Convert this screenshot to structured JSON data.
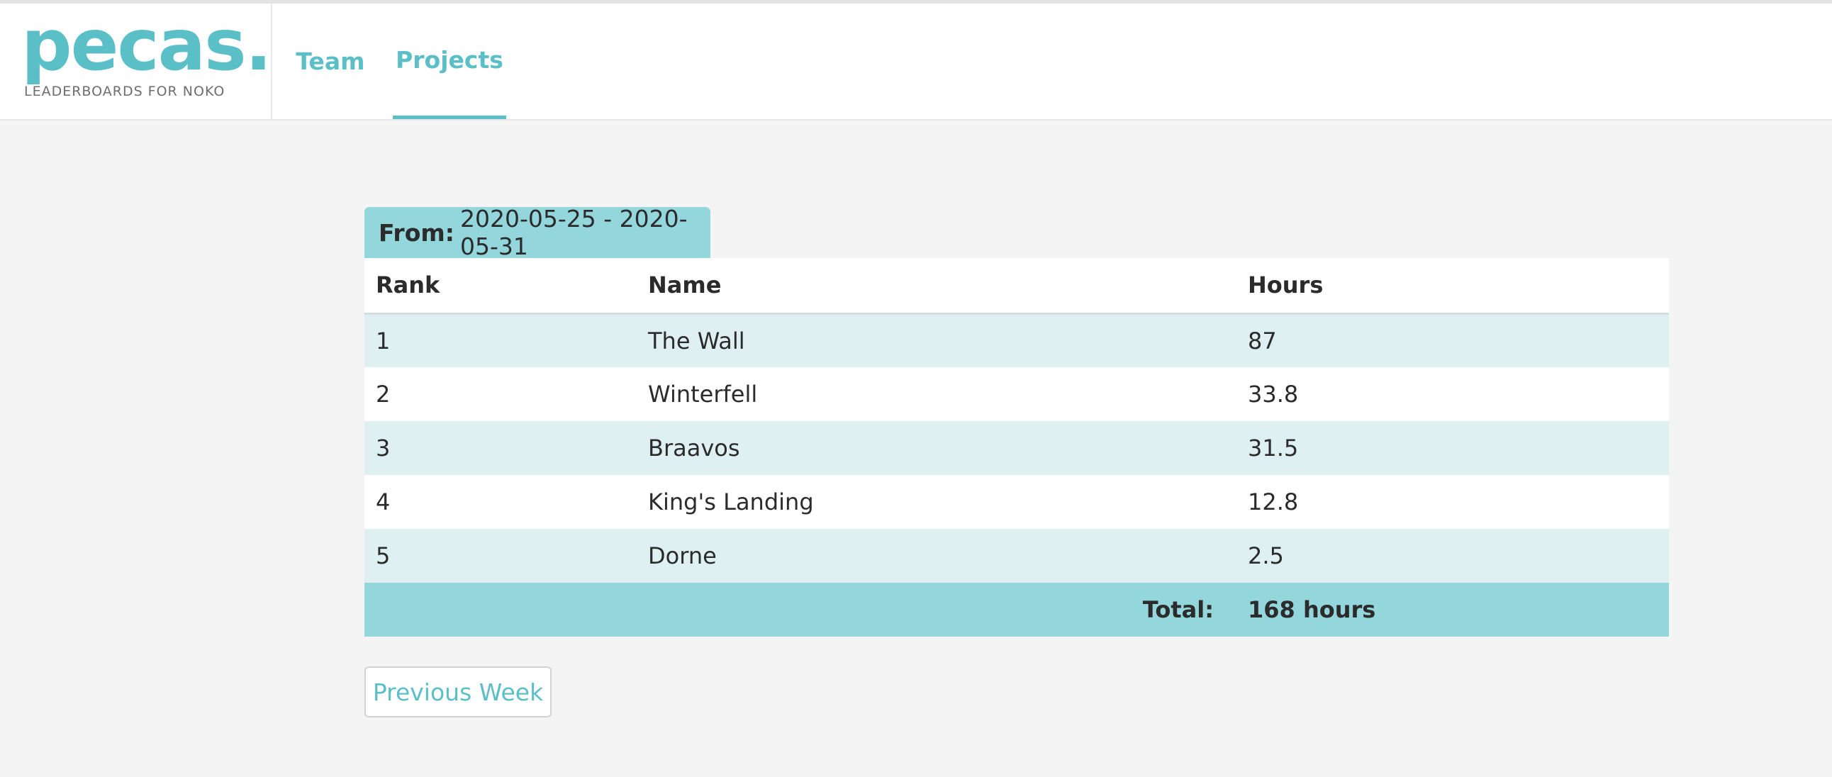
{
  "brand": {
    "logo_text": "pecas.",
    "tagline": "LEADERBOARDS FOR NOKO"
  },
  "nav": {
    "tabs": [
      {
        "label": "Team",
        "active": false
      },
      {
        "label": "Projects",
        "active": true
      }
    ]
  },
  "period": {
    "label": "From:",
    "range": "2020-05-25 - 2020-05-31"
  },
  "table": {
    "headers": {
      "rank": "Rank",
      "name": "Name",
      "hours": "Hours"
    },
    "rows": [
      {
        "rank": "1",
        "name": "The Wall",
        "hours": "87"
      },
      {
        "rank": "2",
        "name": "Winterfell",
        "hours": "33.8"
      },
      {
        "rank": "3",
        "name": "Braavos",
        "hours": "31.5"
      },
      {
        "rank": "4",
        "name": "King's Landing",
        "hours": "12.8"
      },
      {
        "rank": "5",
        "name": "Dorne",
        "hours": "2.5"
      }
    ],
    "total_label": "Total:",
    "total_value": "168 hours"
  },
  "actions": {
    "previous_week": "Previous Week"
  },
  "colors": {
    "accent": "#5bbfc8",
    "tab_bg": "#93d6dc",
    "row_alt": "#dff0f2",
    "page_bg": "#f4f4f4"
  }
}
